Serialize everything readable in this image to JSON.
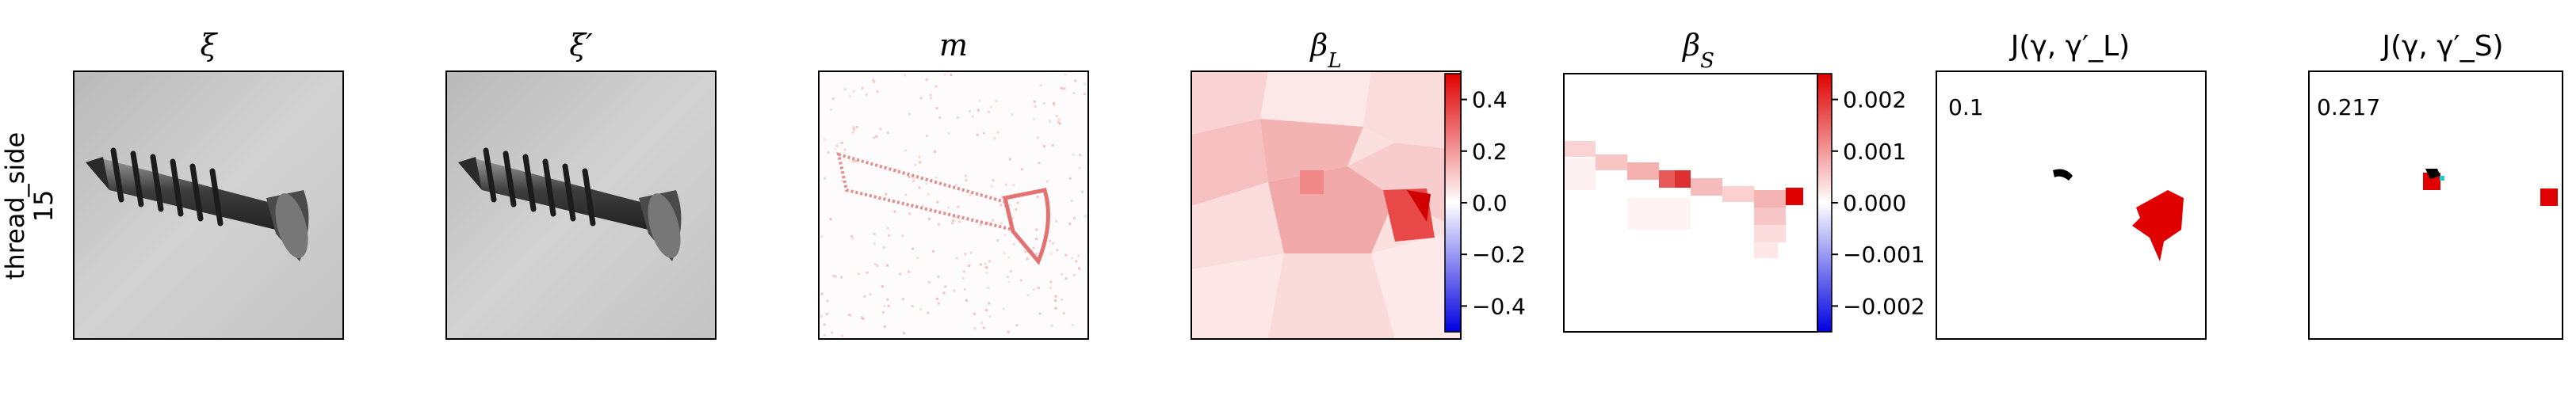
{
  "row_label": {
    "line1": "thread_side",
    "line2": "15"
  },
  "panels": [
    {
      "id": "xi",
      "title": "ξ"
    },
    {
      "id": "xi_prime",
      "title": "ξ′"
    },
    {
      "id": "m",
      "title": "m"
    },
    {
      "id": "beta_L",
      "title": "β_L",
      "colorbar": {
        "ticks": [
          "0.4",
          "0.2",
          "0.0",
          "−0.2",
          "−0.4"
        ],
        "range": [
          -0.55,
          0.55
        ]
      }
    },
    {
      "id": "beta_S",
      "title": "β_S",
      "colorbar": {
        "ticks": [
          "0.002",
          "0.001",
          "0.000",
          "−0.001",
          "−0.002"
        ],
        "range": [
          -0.0023,
          0.0023
        ]
      }
    },
    {
      "id": "J_L",
      "title": "J(γ, γ′_L)",
      "score": "0.1"
    },
    {
      "id": "J_S",
      "title": "J(γ, γ′_S)",
      "score": "0.217"
    }
  ],
  "colors": {
    "red": "#e00000",
    "blue": "#0000e0",
    "black": "#000000",
    "cyan": "#22cccc"
  }
}
